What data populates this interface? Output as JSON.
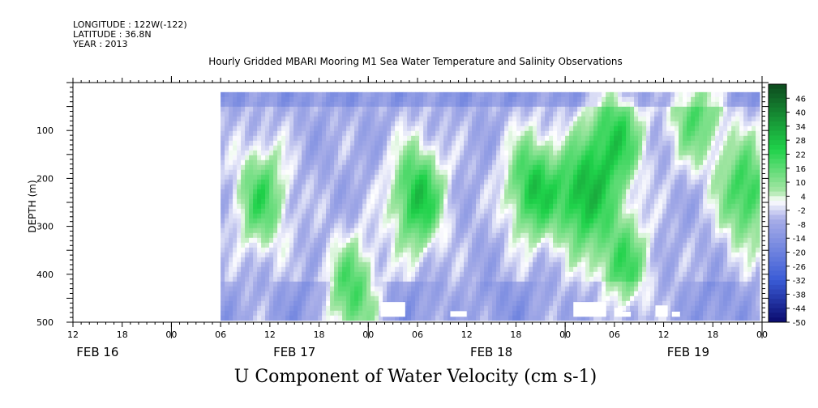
{
  "header": {
    "longitude": "LONGITUDE : 122W(-122)",
    "latitude": "LATITUDE : 36.8N",
    "year": "YEAR : 2013"
  },
  "colors": {
    "negative_deep": "#0a0a6e",
    "negative": "#3a5bd6",
    "negative_light": "#a8aee8",
    "zero": "#ffffff",
    "positive_light": "#a6e6a6",
    "positive": "#1fd24a",
    "positive_deep": "#0d4a1e"
  },
  "chart_data": {
    "type": "heatmap",
    "title": "Hourly Gridded MBARI Mooring M1 Sea Water Temperature and Salinity Observations",
    "bottom_title": "U Component of Water Velocity (cm s-1)",
    "ylabel": "DEPTH (m)",
    "ylim": [
      500,
      0
    ],
    "y_ticks": [
      100,
      200,
      300,
      400,
      500
    ],
    "x_tick_labels": [
      "12",
      "18",
      "00",
      "06",
      "12",
      "18",
      "00",
      "06",
      "12",
      "18",
      "00",
      "06",
      "12",
      "18",
      "00"
    ],
    "x_date_labels": [
      "FEB 16",
      "FEB 17",
      "FEB 18",
      "FEB 19"
    ],
    "xlim_hours": [
      0,
      84
    ],
    "data_start_hour": 18,
    "data_depth_range": [
      20,
      487
    ],
    "colorbar_labels": [
      "46",
      "40",
      "34",
      "28",
      "22",
      "16",
      "10",
      "4",
      "-2",
      "-8",
      "-14",
      "-20",
      "-26",
      "-32",
      "-38",
      "-44",
      "-50"
    ],
    "colorbar_range": [
      -50,
      52
    ],
    "data_gaps": [
      {
        "hour_start": 37.5,
        "hour_end": 40.5,
        "depth_top": 458
      },
      {
        "hour_start": 46.0,
        "hour_end": 48.0,
        "depth_top": 477
      },
      {
        "hour_start": 61.0,
        "hour_end": 65.0,
        "depth_top": 458
      },
      {
        "hour_start": 66.0,
        "hour_end": 67.0,
        "depth_top": 470
      },
      {
        "hour_start": 67.0,
        "hour_end": 68.0,
        "depth_top": 478
      },
      {
        "hour_start": 71.0,
        "hour_end": 72.5,
        "depth_top": 465
      },
      {
        "hour_start": 73.0,
        "hour_end": 74.0,
        "depth_top": 478
      }
    ],
    "green_cores": [
      {
        "hour": 23,
        "depth": 240,
        "value": 14
      },
      {
        "hour": 42,
        "depth": 240,
        "value": 22
      },
      {
        "hour": 56,
        "depth": 220,
        "value": 20
      },
      {
        "hour": 62,
        "depth": 240,
        "value": 22
      },
      {
        "hour": 66,
        "depth": 120,
        "value": 20
      },
      {
        "hour": 82,
        "depth": 230,
        "value": 18
      },
      {
        "hour": 90,
        "depth": 250,
        "value": 16
      },
      {
        "hour": 76,
        "depth": 60,
        "value": 12
      },
      {
        "hour": 34,
        "depth": 440,
        "value": 14
      },
      {
        "hour": 67,
        "depth": 380,
        "value": 14
      }
    ]
  }
}
